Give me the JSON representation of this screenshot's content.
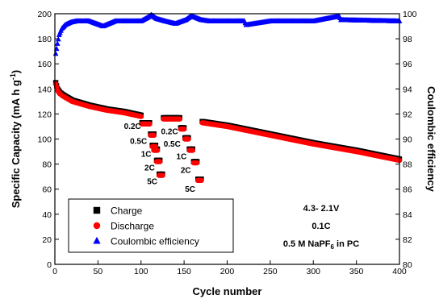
{
  "chart_data": {
    "type": "scatter",
    "xlabel": "Cycle number",
    "ylabel_left": {
      "main": "Specific Capacity (mA h g",
      "sup": "-1",
      "end": ")"
    },
    "ylabel_right": "Coulombic efficiency",
    "xlim": [
      0,
      400
    ],
    "ylim_left": [
      0,
      200
    ],
    "ylim_right": [
      80,
      100
    ],
    "x_ticks": [
      0,
      50,
      100,
      150,
      200,
      250,
      300,
      350,
      400
    ],
    "y_left_ticks": [
      0,
      20,
      40,
      60,
      80,
      100,
      120,
      140,
      160,
      180,
      200
    ],
    "y_right_ticks": [
      80,
      82,
      84,
      86,
      88,
      90,
      92,
      94,
      96,
      98,
      100
    ],
    "series": [
      {
        "name": "Charge",
        "marker": "square",
        "color": "#000000",
        "axis": "left",
        "segments": [
          {
            "x_start": 1,
            "x_end": 100,
            "points": [
              [
                1,
                145
              ],
              [
                3,
                140
              ],
              [
                6,
                137
              ],
              [
                10,
                135
              ],
              [
                20,
                131
              ],
              [
                40,
                127
              ],
              [
                60,
                124
              ],
              [
                80,
                122
              ],
              [
                100,
                119
              ]
            ]
          },
          {
            "x_start": 101,
            "x_end": 110,
            "value": 113
          },
          {
            "x_start": 111,
            "x_end": 115,
            "value": 104
          },
          {
            "x_start": 113,
            "x_end": 117,
            "value": 95
          },
          {
            "x_start": 115,
            "x_end": 119,
            "value": 92
          },
          {
            "x_start": 118,
            "x_end": 122,
            "value": 83
          },
          {
            "x_start": 121,
            "x_end": 125,
            "value": 72
          },
          {
            "x_start": 126,
            "x_end": 145,
            "value": 117
          },
          {
            "x_start": 146,
            "x_end": 150,
            "value": 109
          },
          {
            "x_start": 151,
            "x_end": 155,
            "value": 101
          },
          {
            "x_start": 156,
            "x_end": 160,
            "value": 92
          },
          {
            "x_start": 161,
            "x_end": 165,
            "value": 82
          },
          {
            "x_start": 166,
            "x_end": 170,
            "value": 68
          },
          {
            "x_start": 171,
            "x_end": 400,
            "points": [
              [
                171,
                114
              ],
              [
                200,
                111
              ],
              [
                250,
                104
              ],
              [
                300,
                97
              ],
              [
                350,
                91
              ],
              [
                400,
                84
              ]
            ]
          }
        ]
      },
      {
        "name": "Discharge",
        "marker": "circle",
        "color": "#ff0000",
        "axis": "left",
        "segments": [
          {
            "x_start": 1,
            "x_end": 100,
            "points": [
              [
                1,
                144
              ],
              [
                3,
                139
              ],
              [
                6,
                136
              ],
              [
                10,
                134
              ],
              [
                20,
                130
              ],
              [
                40,
                126
              ],
              [
                60,
                123
              ],
              [
                80,
                121
              ],
              [
                100,
                118
              ]
            ]
          },
          {
            "x_start": 101,
            "x_end": 110,
            "value": 112
          },
          {
            "x_start": 111,
            "x_end": 115,
            "value": 103
          },
          {
            "x_start": 113,
            "x_end": 117,
            "value": 94
          },
          {
            "x_start": 115,
            "x_end": 119,
            "value": 91
          },
          {
            "x_start": 118,
            "x_end": 122,
            "value": 82
          },
          {
            "x_start": 121,
            "x_end": 125,
            "value": 71
          },
          {
            "x_start": 126,
            "x_end": 145,
            "value": 116
          },
          {
            "x_start": 146,
            "x_end": 150,
            "value": 108
          },
          {
            "x_start": 151,
            "x_end": 155,
            "value": 100
          },
          {
            "x_start": 156,
            "x_end": 160,
            "value": 91
          },
          {
            "x_start": 161,
            "x_end": 165,
            "value": 81
          },
          {
            "x_start": 166,
            "x_end": 170,
            "value": 67
          },
          {
            "x_start": 171,
            "x_end": 400,
            "points": [
              [
                171,
                113
              ],
              [
                200,
                110
              ],
              [
                250,
                103
              ],
              [
                300,
                96
              ],
              [
                350,
                90
              ],
              [
                400,
                83
              ]
            ]
          }
        ]
      },
      {
        "name": "Coulombic efficiency",
        "marker": "triangle",
        "color": "#0000ff",
        "axis": "right",
        "points": [
          [
            1,
            96.8
          ],
          [
            3,
            97.6
          ],
          [
            5,
            98.3
          ],
          [
            8,
            98.8
          ],
          [
            12,
            99.1
          ],
          [
            18,
            99.3
          ],
          [
            25,
            99.4
          ],
          [
            40,
            99.4
          ],
          [
            56,
            99.0
          ],
          [
            70,
            99.4
          ],
          [
            100,
            99.4
          ],
          [
            108,
            99.7
          ],
          [
            112,
            99.9
          ],
          [
            118,
            99.6
          ],
          [
            128,
            99.4
          ],
          [
            140,
            99.2
          ],
          [
            152,
            99.5
          ],
          [
            158,
            99.8
          ],
          [
            163,
            99.7
          ],
          [
            170,
            99.5
          ],
          [
            180,
            99.4
          ],
          [
            220,
            99.4
          ],
          [
            222,
            99.1
          ],
          [
            250,
            99.4
          ],
          [
            300,
            99.4
          ],
          [
            330,
            99.8
          ],
          [
            332,
            99.5
          ],
          [
            400,
            99.4
          ]
        ]
      }
    ],
    "rate_labels": {
      "left": [
        {
          "text": "0.2C",
          "x": 100,
          "y": 108
        },
        {
          "text": "0.5C",
          "x": 107,
          "y": 96
        },
        {
          "text": "1C",
          "x": 112,
          "y": 86
        },
        {
          "text": "2C",
          "x": 116,
          "y": 75
        },
        {
          "text": "5C",
          "x": 119,
          "y": 64
        }
      ],
      "right": [
        {
          "text": "0.2C",
          "x": 143,
          "y": 104
        },
        {
          "text": "0.5C",
          "x": 146,
          "y": 94
        },
        {
          "text": "1C",
          "x": 153,
          "y": 84
        },
        {
          "text": "2C",
          "x": 158,
          "y": 73
        },
        {
          "text": "5C",
          "x": 163,
          "y": 58
        }
      ]
    },
    "annotations": {
      "voltage": "4.3- 2.1V",
      "rate": "0.1C",
      "electrolyte_prefix": "0.5 M NaPF",
      "electrolyte_sub": "6",
      "electrolyte_suffix": " in PC"
    },
    "legend_placement": "bottom-left",
    "legend": [
      "Charge",
      "Discharge",
      "Coulombic efficiency"
    ],
    "grid": false
  }
}
